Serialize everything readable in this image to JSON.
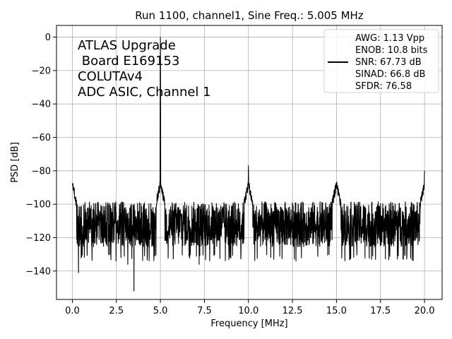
{
  "chart_data": {
    "type": "line",
    "title": "Run 1100, channel1, Sine Freq.: 5.005 MHz",
    "xlabel": "Frequency [MHz]",
    "ylabel": "PSD [dB]",
    "xlim": [
      -0.9,
      21.0
    ],
    "ylim": [
      -157,
      7
    ],
    "xticks": [
      0.0,
      2.5,
      5.0,
      7.5,
      10.0,
      12.5,
      15.0,
      17.5,
      20.0
    ],
    "xtick_labels": [
      "0.0",
      "2.5",
      "5.0",
      "7.5",
      "10.0",
      "12.5",
      "15.0",
      "17.5",
      "20.0"
    ],
    "yticks": [
      0,
      -20,
      -40,
      -60,
      -80,
      -100,
      -120,
      -140
    ],
    "ytick_labels": [
      "0",
      "−20",
      "−40",
      "−60",
      "−80",
      "−100",
      "−120",
      "−140"
    ],
    "grid": true,
    "legend_position": "top-right",
    "annotation_lines": [
      "ATLAS Upgrade",
      " Board E169153",
      "COLUTAv4",
      "ADC ASIC, Channel 1"
    ],
    "legend_lines": [
      "AWG: 1.13 Vpp",
      "ENOB: 10.8 bits",
      "SNR: 67.73 dB",
      "SINAD: 66.8 dB",
      "SFDR: 76.58"
    ],
    "series": [
      {
        "color": "#000000",
        "noise_floor_db": -112,
        "noise_range_db": [
          -130,
          -100
        ],
        "peaks": [
          {
            "x": 0.0,
            "y": -88
          },
          {
            "x": 5.0,
            "y": 0
          },
          {
            "x": 10.0,
            "y": -77
          },
          {
            "x": 15.0,
            "y": -87
          },
          {
            "x": 20.0,
            "y": -80
          }
        ],
        "dips": [
          {
            "x": 0.35,
            "y": -141
          },
          {
            "x": 3.5,
            "y": -152
          },
          {
            "x": 3.15,
            "y": -136
          },
          {
            "x": 7.2,
            "y": -136
          }
        ]
      }
    ]
  }
}
